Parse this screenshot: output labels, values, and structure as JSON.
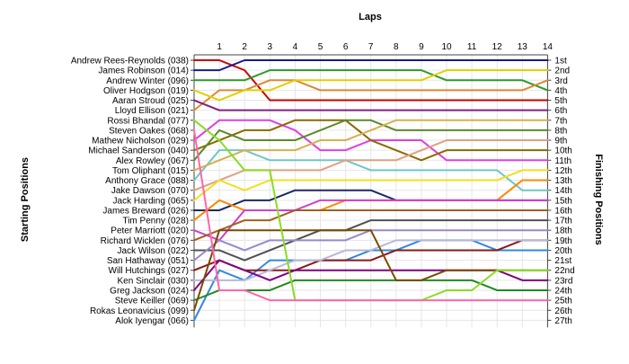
{
  "chart_data": {
    "type": "line",
    "title": "Laps",
    "ylabel_left": "Starting Positions",
    "ylabel_right": "Finishing Positions",
    "x": [
      0,
      1,
      2,
      3,
      4,
      5,
      6,
      7,
      8,
      9,
      10,
      11,
      12,
      13,
      14
    ],
    "x_tick_labels": [
      "1",
      "2",
      "3",
      "4",
      "5",
      "6",
      "7",
      "8",
      "9",
      "10",
      "11",
      "12",
      "13",
      "14"
    ],
    "starting_labels": [
      "Andrew Rees-Reynolds (038)",
      "James Robinson (014)",
      "Andrew Winter (096)",
      "Oliver Hodgson (019)",
      "Aaran Stroud (025)",
      "Lloyd Ellison (021)",
      "Rossi Bhandal (077)",
      "Steven Oakes (068)",
      "Mathew Nicholson (029)",
      "Michael Sanderson (040)",
      "Alex Rowley (067)",
      "Tom Oliphant (015)",
      "Anthony Grace (088)",
      "Jake Dawson (070)",
      "Jack Harding (065)",
      "James Breward (026)",
      "Tim Penny (028)",
      "Peter Marriott (020)",
      "Richard Wicklen (076)",
      "Jack Wilson (022)",
      "San Hathaway (051)",
      "Will Hutchings (027)",
      "Ken Sinclair (030)",
      "Greg Jackson (024)",
      "Steve Keiller (069)",
      "Rokas Leonavicius (099)",
      "Alok Iyengar (066)"
    ],
    "finishing_labels": [
      "1st",
      "2nd",
      "3rd",
      "4th",
      "5th",
      "6th",
      "7th",
      "8th",
      "9th",
      "10th",
      "11th",
      "12th",
      "13th",
      "14th",
      "15th",
      "16th",
      "17th",
      "18th",
      "19th",
      "20th",
      "21st",
      "22nd",
      "23rd",
      "24th",
      "25th",
      "26th",
      "27th"
    ],
    "series": [
      {
        "color": "#cc0000",
        "values": [
          1,
          1,
          2,
          5,
          5,
          5,
          5,
          5,
          5,
          5,
          5,
          5,
          5,
          5,
          5
        ]
      },
      {
        "color": "#1a1a8c",
        "values": [
          2,
          2,
          1,
          1,
          1,
          1,
          1,
          1,
          1,
          1,
          1,
          1,
          1,
          1,
          1
        ]
      },
      {
        "color": "#2a9a2a",
        "values": [
          3,
          3,
          3,
          2,
          2,
          2,
          2,
          2,
          2,
          2,
          3,
          3,
          3,
          3,
          4
        ]
      },
      {
        "color": "#dd8833",
        "values": [
          6,
          4,
          4,
          3,
          3,
          4,
          4,
          4,
          4,
          4,
          4,
          4,
          4,
          4,
          3
        ]
      },
      {
        "color": "#e0d000",
        "values": [
          4,
          5,
          4,
          4,
          3,
          3,
          3,
          3,
          3,
          3,
          2,
          2,
          2,
          2,
          2
        ]
      },
      {
        "color": "#802080",
        "values": [
          5,
          6,
          6,
          6,
          6,
          6,
          6,
          6,
          6,
          6,
          6,
          6,
          6,
          6,
          6
        ]
      },
      {
        "color": "#e040e0",
        "values": [
          9,
          7,
          7,
          7,
          8,
          10,
          10,
          9,
          9,
          9,
          11,
          11,
          11,
          11,
          11
        ]
      },
      {
        "color": "#8a6a00",
        "values": [
          10,
          9,
          8,
          8,
          7,
          7,
          7,
          9,
          10,
          11,
          10,
          10,
          10,
          10,
          10
        ]
      },
      {
        "color": "#5c8a28",
        "values": [
          11,
          8,
          9,
          9,
          9,
          8,
          7,
          7,
          8,
          8,
          8,
          8,
          8,
          8,
          8
        ]
      },
      {
        "color": "#70c7c7",
        "values": [
          13,
          10,
          10,
          11,
          11,
          11,
          11,
          12,
          12,
          12,
          12,
          12,
          12,
          14,
          14
        ]
      },
      {
        "color": "#e0a080",
        "values": [
          14,
          13,
          12,
          12,
          12,
          12,
          11,
          11,
          11,
          10,
          9,
          9,
          9,
          9,
          9
        ]
      },
      {
        "color": "#d6b050",
        "values": [
          12,
          11,
          10,
          10,
          10,
          9,
          9,
          8,
          7,
          7,
          7,
          7,
          7,
          7,
          7
        ]
      },
      {
        "color": "#f0e020",
        "values": [
          15,
          13,
          14,
          13,
          13,
          13,
          13,
          13,
          13,
          13,
          13,
          13,
          13,
          12,
          12
        ]
      },
      {
        "color": "#1a2a6a",
        "values": [
          16,
          16,
          15,
          15,
          14,
          14,
          14,
          14,
          15,
          15,
          15,
          15,
          15,
          15,
          15
        ]
      },
      {
        "color": "#ff8800",
        "values": [
          17,
          15,
          16,
          16,
          16,
          16,
          15,
          15,
          15,
          15,
          15,
          15,
          15,
          13,
          13
        ]
      },
      {
        "color": "#d040d0",
        "values": [
          18,
          19,
          16,
          16,
          16,
          15,
          15,
          15,
          15,
          15,
          15,
          15,
          15,
          15,
          15
        ]
      },
      {
        "color": "#a06020",
        "values": [
          19,
          18,
          17,
          17,
          16,
          16,
          16,
          16,
          16,
          16,
          16,
          16,
          16,
          16,
          16
        ]
      },
      {
        "color": "#505050",
        "values": [
          20,
          20,
          21,
          20,
          19,
          18,
          18,
          17,
          17,
          17,
          17,
          17,
          17,
          17,
          17
        ]
      },
      {
        "color": "#9988cc",
        "values": [
          21,
          19,
          20,
          19,
          19,
          19,
          19,
          18,
          18,
          18,
          18,
          18,
          18,
          18,
          18
        ]
      },
      {
        "color": "#3388dd",
        "values": [
          27,
          22,
          23,
          21,
          21,
          21,
          21,
          20,
          20,
          19,
          19,
          19,
          20,
          20,
          20
        ]
      },
      {
        "color": "#8a1a1a",
        "values": [
          22,
          21,
          22,
          22,
          22,
          21,
          21,
          21,
          20,
          20,
          20,
          20,
          20,
          19,
          19
        ]
      },
      {
        "color": "#b8b8d8",
        "values": [
          23,
          23,
          23,
          22,
          21,
          21,
          20,
          20,
          19,
          19,
          19,
          19,
          19,
          19,
          19
        ]
      },
      {
        "color": "#800080",
        "values": [
          24,
          21,
          22,
          23,
          22,
          22,
          22,
          22,
          22,
          22,
          22,
          22,
          22,
          23,
          23
        ]
      },
      {
        "color": "#208a20",
        "values": [
          25,
          24,
          24,
          24,
          23,
          23,
          23,
          23,
          23,
          23,
          23,
          23,
          24,
          24,
          24
        ]
      },
      {
        "color": "#7a4a00",
        "values": [
          26,
          18,
          18,
          18,
          18,
          18,
          18,
          18,
          23,
          23,
          22,
          22,
          22,
          22,
          22
        ]
      },
      {
        "color": "#88dd22",
        "values": [
          7,
          9,
          12,
          12,
          25,
          25,
          25,
          25,
          25,
          25,
          24,
          24,
          22,
          22,
          22
        ]
      },
      {
        "color": "#ff66aa",
        "values": [
          8,
          24,
          24,
          25,
          25,
          25,
          25,
          25,
          25,
          25,
          25,
          25,
          25,
          25,
          25
        ]
      }
    ]
  }
}
